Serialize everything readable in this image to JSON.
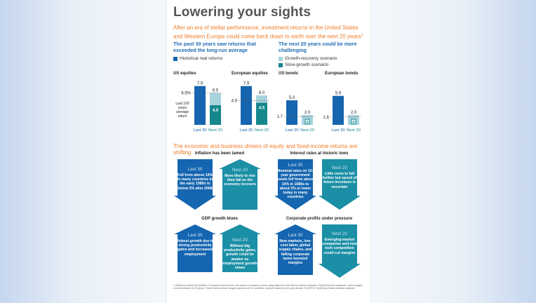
{
  "title": "Lowering your sights",
  "subtitle": "After an era of stellar performance, investment returns in the United States and Western Europe could come back down to earth over the next 20 years",
  "subtitle_sup": "1",
  "left_head": "The past 30 years saw returns that exceeded the long-run average",
  "right_head": "The next 20 years could be more challenging",
  "legend": {
    "historical": "Historical real returns",
    "growth": "Growth-recovery scenario",
    "slow": "Slow-growth scenario"
  },
  "colors": {
    "historical": "#1565b0",
    "growth": "#a8d3dd",
    "slow": "#15878d",
    "dark_arrow": "#1565b0",
    "light_arrow": "#1a8fa5",
    "orange": "#ef7d27"
  },
  "avg_annotation": "Last 100 years average return",
  "chart_data": [
    {
      "type": "bar",
      "title": "US equities",
      "categories": [
        "Last 30",
        "Next 20"
      ],
      "last30": 7.9,
      "growth_recovery": 6.5,
      "slow_growth": 4.0,
      "long_run_average": 6.5,
      "long_run_label": "6.5%",
      "labels": {
        "last30": "7.9",
        "growth": "6.5",
        "slow": "4.0"
      }
    },
    {
      "type": "bar",
      "title": "European equities",
      "categories": [
        "Last 30",
        "Next 20"
      ],
      "last30": 7.9,
      "growth_recovery": 6.0,
      "slow_growth": 4.5,
      "long_run_average": 4.9,
      "long_run_label": "4.9",
      "labels": {
        "last30": "7.9",
        "growth": "6.0",
        "slow": "4.5"
      }
    },
    {
      "type": "bar",
      "title": "US bonds",
      "categories": [
        "Last 30",
        "Next 20"
      ],
      "last30": 5.0,
      "growth_recovery": 2.0,
      "slow_growth": 0.0,
      "long_run_average": 1.7,
      "long_run_label": "1.7",
      "labels": {
        "last30": "5.0",
        "growth": "2.0",
        "slow": "0"
      }
    },
    {
      "type": "bar",
      "title": "European bonds",
      "categories": [
        "Last 30",
        "Next 20"
      ],
      "last30": 5.9,
      "growth_recovery": 2.0,
      "slow_growth": 0.0,
      "long_run_average": 1.6,
      "long_run_label": "1.6",
      "labels": {
        "last30": "5.9",
        "growth": "2.0",
        "slow": "0"
      }
    }
  ],
  "section_head": "The economic and business drivers of equity and fixed-income returns are shifting",
  "panels": [
    {
      "title": "Inflation has been tamed",
      "last_label": "Last 30",
      "last_text": "Fell from above 10% in many countries in the early 1980s to below 2% after 2008",
      "next_label": "Next 20",
      "next_text": "More likely to rise than fall as the economy recovers"
    },
    {
      "title": "Interest rates at historic lows",
      "last_label": "Last 30",
      "last_text": "Nominal rates on 10-year government bonds fell from above 10% in 1980s to about 2% or lower today in many countries",
      "next_label": "Next 20",
      "next_text": "Little room to fall further but speed of future increases is uncertain"
    },
    {
      "title": "GDP growth blues",
      "last_label": "Last 30",
      "last_text": "Robust growth due to strong productivity gains and increased employment",
      "next_label": "Next 20",
      "next_text": "Without big productivity gains, growth could be weaker as employment growth slows"
    },
    {
      "title": "Corporate profits under pressure",
      "last_label": "Last 30",
      "last_text": "New markets, low-cost labor, global supply chains, and falling corporate taxes boosted margins",
      "next_label": "Next 20",
      "next_text": "Emerging-market companies and new tech competition could cut margins"
    }
  ],
  "footnote": "1 Historical returns for Western European fixed income are based on treasury bonds using data from the Dimson-Marsh-Staunton Global Returns database, which targets a bond duration of 20 years. Future returns show ranges across a set of countries, and are based on ten-year bonds. SOURCE: McKinsey Global Institute analysis"
}
